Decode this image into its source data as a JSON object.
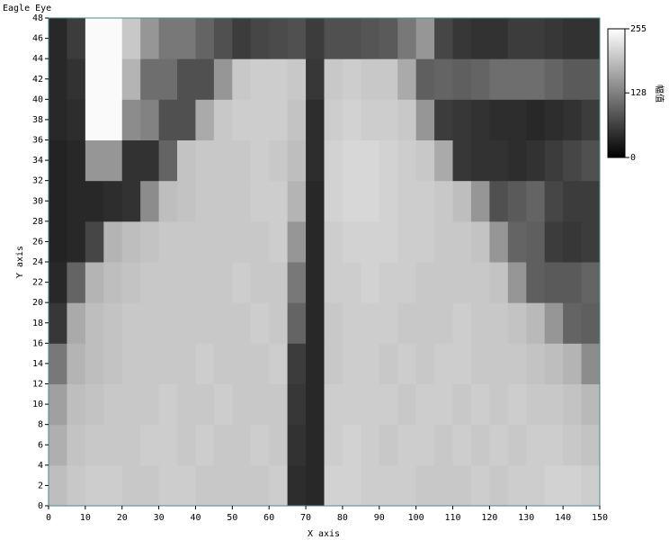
{
  "chart_data": {
    "type": "heatmap",
    "title": "Eagle Eye",
    "x_label": "X axis",
    "y_label": "Y axis",
    "colorbar_label": "幅值",
    "xlim": [
      0,
      150
    ],
    "ylim": [
      0,
      48
    ],
    "zlim": [
      0,
      255
    ],
    "xticks": [
      0,
      10,
      20,
      30,
      40,
      50,
      60,
      70,
      80,
      90,
      100,
      110,
      120,
      130,
      140,
      150
    ],
    "yticks": [
      0,
      2,
      4,
      6,
      8,
      10,
      12,
      14,
      16,
      18,
      20,
      22,
      24,
      26,
      28,
      30,
      32,
      34,
      36,
      38,
      40,
      42,
      44,
      46,
      48
    ],
    "zticks": [
      0,
      128,
      255
    ],
    "values": [
      [
        190,
        200,
        205,
        205,
        200,
        200,
        205,
        205,
        200,
        200,
        200,
        200,
        205,
        45,
        40,
        210,
        210,
        205,
        205,
        205,
        200,
        200,
        200,
        205,
        200,
        205,
        205,
        210,
        210,
        205
      ],
      [
        175,
        195,
        200,
        200,
        200,
        205,
        205,
        200,
        205,
        200,
        200,
        205,
        200,
        50,
        40,
        205,
        210,
        205,
        200,
        205,
        205,
        200,
        205,
        200,
        205,
        200,
        205,
        205,
        200,
        195
      ],
      [
        160,
        190,
        195,
        200,
        200,
        200,
        205,
        200,
        200,
        205,
        200,
        200,
        200,
        55,
        40,
        205,
        205,
        205,
        205,
        200,
        205,
        205,
        200,
        205,
        200,
        205,
        200,
        200,
        195,
        185
      ],
      [
        120,
        180,
        190,
        195,
        200,
        200,
        200,
        200,
        205,
        200,
        200,
        200,
        205,
        60,
        40,
        200,
        205,
        205,
        200,
        205,
        200,
        205,
        205,
        200,
        200,
        200,
        195,
        190,
        180,
        140
      ],
      [
        55,
        170,
        190,
        195,
        200,
        200,
        200,
        200,
        200,
        200,
        200,
        205,
        200,
        100,
        40,
        200,
        205,
        205,
        205,
        200,
        200,
        200,
        205,
        200,
        200,
        195,
        185,
        150,
        100,
        95
      ],
      [
        40,
        100,
        180,
        190,
        195,
        200,
        200,
        200,
        200,
        200,
        205,
        200,
        200,
        120,
        40,
        205,
        205,
        210,
        205,
        205,
        200,
        200,
        200,
        200,
        195,
        150,
        95,
        90,
        90,
        100
      ],
      [
        35,
        40,
        70,
        180,
        190,
        195,
        200,
        200,
        200,
        200,
        200,
        200,
        205,
        150,
        40,
        205,
        210,
        210,
        210,
        205,
        205,
        200,
        200,
        195,
        150,
        100,
        95,
        60,
        55,
        60
      ],
      [
        35,
        40,
        40,
        45,
        50,
        140,
        190,
        195,
        200,
        200,
        200,
        205,
        205,
        180,
        40,
        210,
        215,
        215,
        210,
        205,
        205,
        200,
        190,
        150,
        80,
        90,
        100,
        70,
        60,
        60
      ],
      [
        35,
        40,
        150,
        150,
        50,
        50,
        100,
        195,
        200,
        200,
        200,
        205,
        200,
        190,
        45,
        210,
        215,
        215,
        210,
        205,
        200,
        170,
        55,
        50,
        50,
        45,
        50,
        60,
        70,
        80
      ],
      [
        40,
        45,
        250,
        250,
        140,
        130,
        80,
        80,
        170,
        200,
        205,
        205,
        205,
        195,
        45,
        205,
        210,
        205,
        205,
        200,
        150,
        60,
        55,
        50,
        45,
        45,
        40,
        45,
        50,
        60
      ],
      [
        40,
        50,
        250,
        250,
        180,
        110,
        110,
        80,
        80,
        150,
        200,
        205,
        205,
        200,
        55,
        200,
        205,
        200,
        200,
        170,
        95,
        100,
        95,
        100,
        110,
        110,
        110,
        100,
        90,
        90
      ],
      [
        40,
        60,
        250,
        250,
        200,
        150,
        120,
        120,
        100,
        80,
        60,
        70,
        75,
        80,
        60,
        80,
        80,
        85,
        90,
        120,
        150,
        70,
        55,
        50,
        50,
        60,
        60,
        55,
        50,
        50
      ]
    ]
  }
}
